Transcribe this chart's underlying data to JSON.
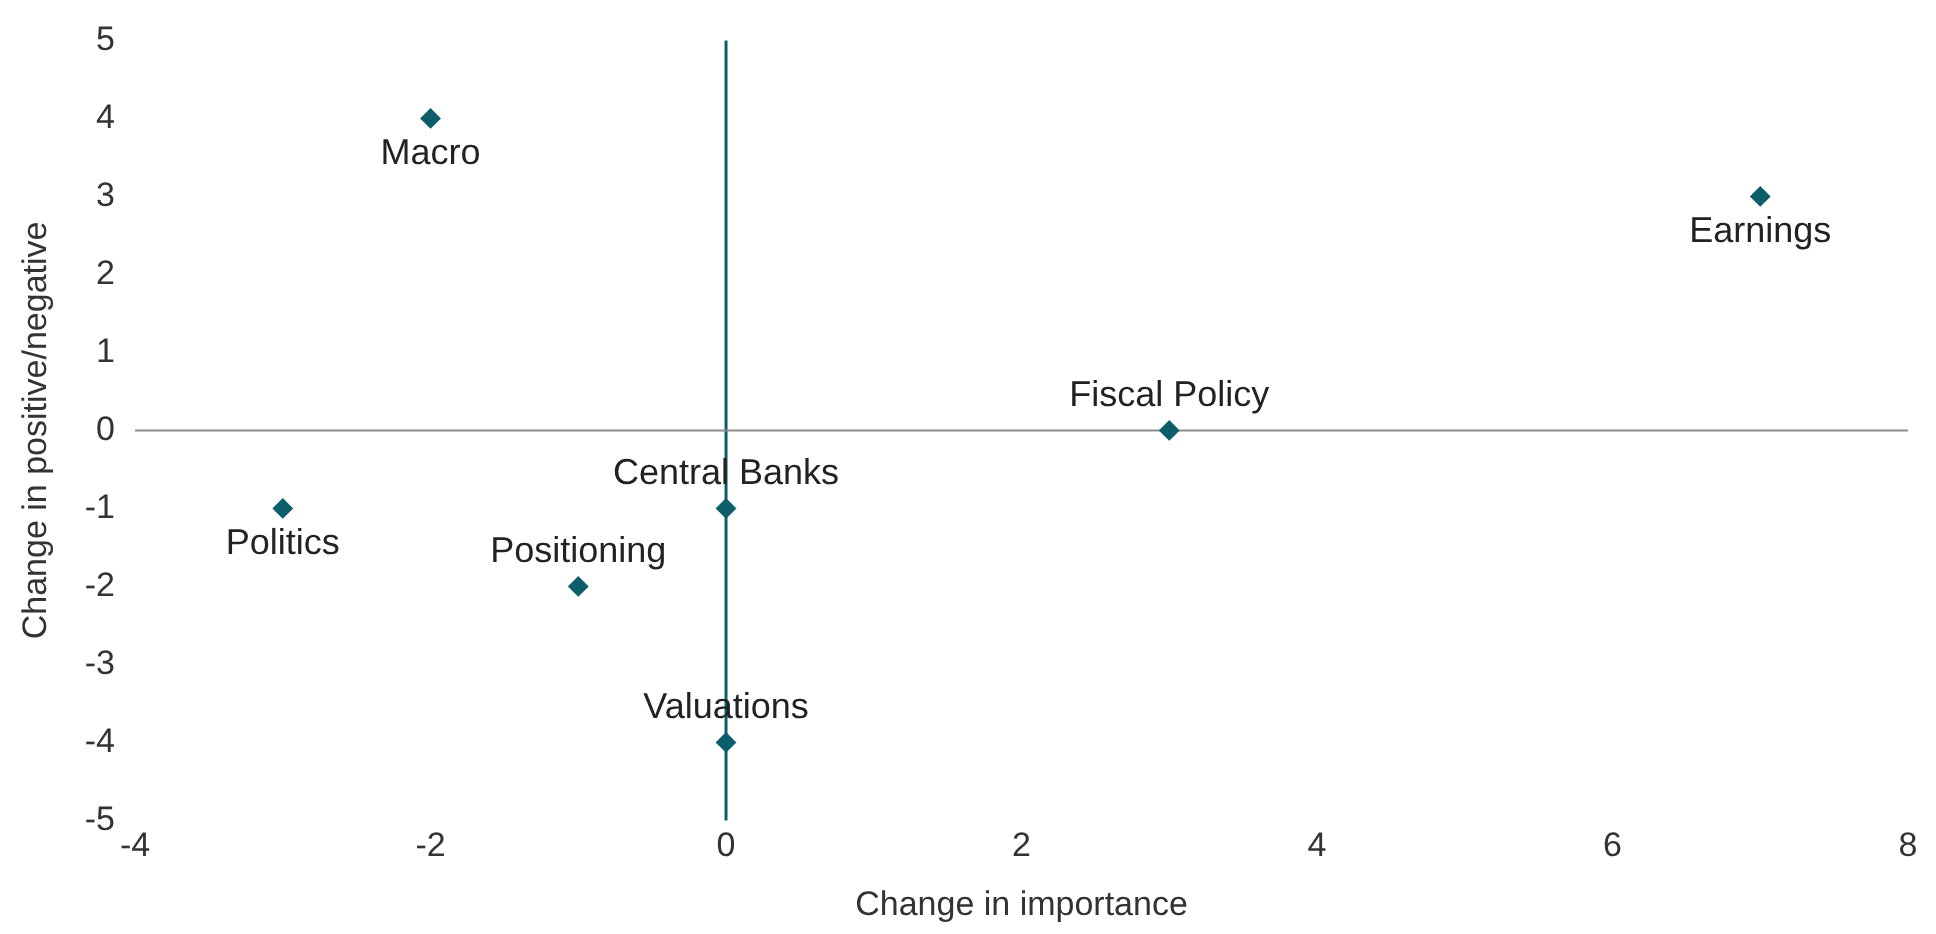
{
  "chart_data": {
    "type": "scatter",
    "xlabel": "Change in importance",
    "ylabel": "Change in positive/negative",
    "series": [
      {
        "color": "#0d5e6b",
        "x": [
          -2,
          7,
          3,
          0,
          -3,
          -1,
          0
        ],
        "values": [
          4,
          3,
          0,
          -1,
          -1,
          -2,
          -4
        ]
      }
    ],
    "xlim": [
      -4,
      8
    ],
    "xticks": [
      -4,
      -2,
      0,
      2,
      4,
      6,
      8
    ],
    "ylim": [
      -5,
      5
    ],
    "yticks": [
      -5,
      -4,
      -3,
      -2,
      -1,
      0,
      1,
      2,
      3,
      4,
      5
    ],
    "ref_lines": [
      {
        "axis": "x",
        "value": 0,
        "color": "#0d5e6b"
      },
      {
        "axis": "y",
        "value": 0,
        "color": "#8c8c8c"
      }
    ],
    "grid": false,
    "legend": false,
    "marker": "diamond",
    "annotations": [
      {
        "text": "Macro",
        "x": -2,
        "y": 4
      },
      {
        "text": "Earnings",
        "x": 7,
        "y": 3
      },
      {
        "text": "Fiscal Policy",
        "x": 3,
        "y": 0
      },
      {
        "text": "Central Banks",
        "x": 0,
        "y": -1
      },
      {
        "text": "Politics",
        "x": -3,
        "y": -1
      },
      {
        "text": "Positioning",
        "x": -1,
        "y": -2
      },
      {
        "text": "Valuations",
        "x": 0,
        "y": -4
      }
    ]
  }
}
